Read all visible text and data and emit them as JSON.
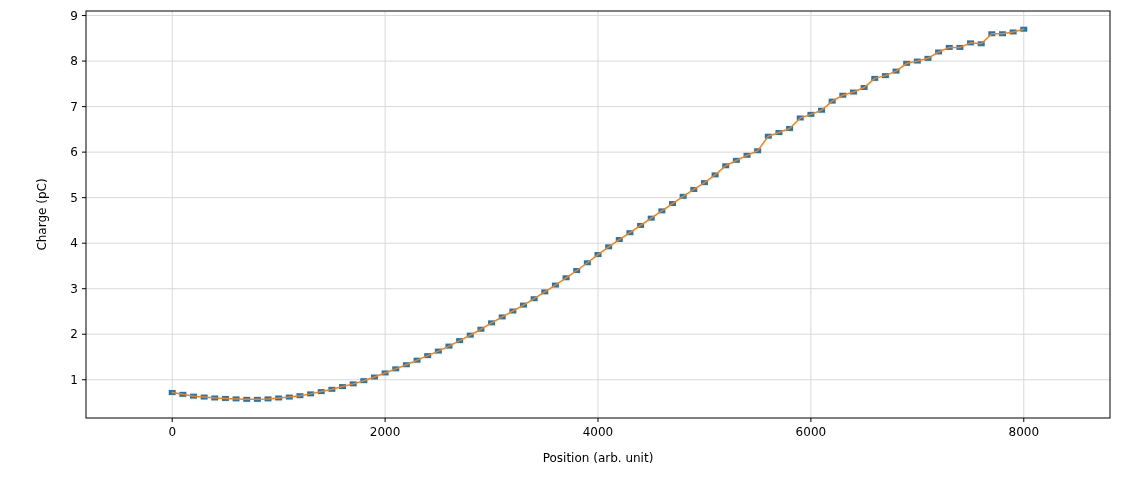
{
  "chart_data": {
    "type": "scatter",
    "xlabel": "Position (arb. unit)",
    "ylabel": "Charge (pC)",
    "xlim": [
      -810,
      8810
    ],
    "ylim": [
      0.16,
      9.1
    ],
    "xticks": [
      0,
      2000,
      4000,
      6000,
      8000
    ],
    "yticks": [
      1,
      2,
      3,
      4,
      5,
      6,
      7,
      8,
      9
    ],
    "grid": true,
    "x": [
      0,
      100,
      200,
      300,
      400,
      500,
      600,
      700,
      800,
      900,
      1000,
      1100,
      1200,
      1300,
      1400,
      1500,
      1600,
      1700,
      1800,
      1900,
      2000,
      2100,
      2200,
      2300,
      2400,
      2500,
      2600,
      2700,
      2800,
      2900,
      3000,
      3100,
      3200,
      3300,
      3400,
      3500,
      3600,
      3700,
      3800,
      3900,
      4000,
      4100,
      4200,
      4300,
      4400,
      4500,
      4600,
      4700,
      4800,
      4900,
      5000,
      5100,
      5200,
      5300,
      5400,
      5500,
      5600,
      5700,
      5800,
      5900,
      6000,
      6100,
      6200,
      6300,
      6400,
      6500,
      6600,
      6700,
      6800,
      6900,
      7000,
      7100,
      7200,
      7300,
      7400,
      7500,
      7600,
      7700,
      7800,
      7900,
      8000
    ],
    "series": [
      {
        "color": "#1f77b4",
        "values": [
          0.72,
          0.68,
          0.64,
          0.62,
          0.6,
          0.59,
          0.58,
          0.57,
          0.57,
          0.58,
          0.6,
          0.62,
          0.65,
          0.69,
          0.74,
          0.79,
          0.85,
          0.91,
          0.98,
          1.06,
          1.15,
          1.24,
          1.33,
          1.43,
          1.53,
          1.63,
          1.74,
          1.86,
          1.98,
          2.11,
          2.25,
          2.38,
          2.51,
          2.64,
          2.78,
          2.93,
          3.08,
          3.24,
          3.4,
          3.57,
          3.75,
          3.92,
          4.08,
          4.23,
          4.39,
          4.55,
          4.71,
          4.87,
          5.03,
          5.18,
          5.33,
          5.5,
          5.7,
          5.82,
          5.93,
          6.03,
          6.35,
          6.43,
          6.52,
          6.75,
          6.83,
          6.92,
          7.12,
          7.25,
          7.32,
          7.42,
          7.62,
          7.68,
          7.78,
          7.95,
          8.0,
          8.06,
          8.2,
          8.3,
          8.3,
          8.4,
          8.38,
          8.6,
          8.6,
          8.64,
          8.7
        ]
      },
      {
        "type": "line",
        "color": "#ff7f0e",
        "line_style": "solid",
        "values": [
          0.72,
          0.68,
          0.64,
          0.62,
          0.6,
          0.59,
          0.58,
          0.57,
          0.57,
          0.58,
          0.6,
          0.62,
          0.65,
          0.69,
          0.74,
          0.79,
          0.85,
          0.91,
          0.98,
          1.06,
          1.15,
          1.24,
          1.33,
          1.43,
          1.53,
          1.63,
          1.74,
          1.86,
          1.98,
          2.11,
          2.25,
          2.38,
          2.51,
          2.64,
          2.78,
          2.93,
          3.08,
          3.24,
          3.4,
          3.57,
          3.75,
          3.92,
          4.08,
          4.23,
          4.39,
          4.55,
          4.71,
          4.87,
          5.03,
          5.18,
          5.33,
          5.5,
          5.7,
          5.82,
          5.93,
          6.03,
          6.35,
          6.43,
          6.52,
          6.75,
          6.83,
          6.92,
          7.12,
          7.25,
          7.32,
          7.42,
          7.62,
          7.68,
          7.78,
          7.95,
          8.0,
          8.06,
          8.2,
          8.3,
          8.3,
          8.4,
          8.38,
          8.6,
          8.6,
          8.64,
          8.7
        ]
      }
    ]
  }
}
